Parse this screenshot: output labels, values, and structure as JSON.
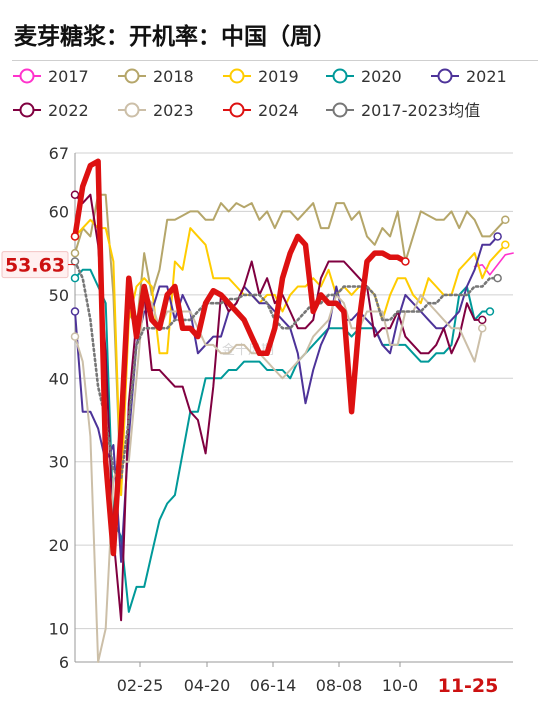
{
  "chart_data": {
    "type": "line",
    "title": "麦芽糖浆：开机率：中国（周）",
    "ylim": [
      6,
      67
    ],
    "yticks": [
      6,
      10,
      20,
      30,
      40,
      50,
      60,
      67
    ],
    "xticks": [
      "02-25",
      "04-20",
      "06-14",
      "08-08",
      "10-0"
    ],
    "highlight_xtick": "11-25",
    "current_value_label": "53.63",
    "watermark": "金十风期",
    "grid": true,
    "legend_position": "top",
    "series": [
      {
        "name": "2017",
        "color": "#ff33cc",
        "width": 1.6,
        "markers": false,
        "values": [
          null,
          null,
          null,
          null,
          null,
          null,
          null,
          null,
          null,
          null,
          null,
          null,
          null,
          null,
          null,
          null,
          null,
          null,
          null,
          null,
          null,
          null,
          null,
          null,
          null,
          null,
          null,
          null,
          null,
          null,
          null,
          null,
          null,
          null,
          null,
          null,
          null,
          null,
          null,
          null,
          null,
          null,
          null,
          null,
          null,
          null,
          null,
          null,
          null,
          null,
          null,
          null,
          53.4,
          53.6,
          52.4,
          53.6,
          54.8,
          55.0
        ]
      },
      {
        "name": "2018",
        "color": "#b5a66a",
        "width": 2,
        "markers": true,
        "values": [
          55,
          58,
          57,
          62,
          62,
          50,
          26,
          48,
          46,
          55,
          50,
          53,
          59,
          59,
          59.5,
          60,
          60,
          59,
          59,
          61,
          60,
          61,
          60.5,
          61,
          59,
          60,
          58,
          60,
          60,
          59,
          60,
          61,
          58,
          58,
          61,
          61,
          59,
          60,
          57,
          56,
          58,
          57,
          60,
          54,
          57,
          60,
          59.5,
          59,
          59,
          60,
          58,
          60,
          59,
          57,
          57,
          58,
          59
        ]
      },
      {
        "name": "2019",
        "color": "#ffcc00",
        "width": 2,
        "markers": true,
        "values": [
          57,
          58,
          59,
          58,
          58,
          54,
          26,
          47,
          51,
          52,
          51,
          43,
          43,
          54,
          53,
          58,
          57,
          56,
          52,
          52,
          52,
          51,
          50,
          50,
          49,
          50,
          50,
          48,
          50,
          51,
          51,
          52,
          51,
          53,
          50,
          51,
          50,
          51,
          51,
          50,
          47,
          50,
          52,
          52,
          50,
          49,
          52,
          51,
          50,
          50,
          53,
          54,
          55,
          52,
          54,
          55,
          56
        ]
      },
      {
        "name": "2020",
        "color": "#009999",
        "width": 2,
        "markers": true,
        "values": [
          52,
          53,
          53,
          51,
          49,
          23,
          21,
          12,
          15,
          15,
          19,
          23,
          25,
          26,
          31,
          36,
          36,
          40,
          40,
          40,
          41,
          41,
          42,
          42,
          42,
          41,
          41,
          41,
          40,
          42,
          43,
          44,
          45,
          46,
          46,
          46,
          45,
          46,
          46,
          46,
          44,
          44,
          44,
          44,
          43,
          42,
          42,
          43,
          43,
          44,
          50,
          51,
          47,
          48,
          48
        ]
      },
      {
        "name": "2021",
        "color": "#4d3399",
        "width": 2,
        "markers": true,
        "values": [
          48,
          36,
          36,
          34,
          30,
          32,
          18,
          33,
          44,
          48,
          48,
          51,
          51,
          47,
          50,
          48,
          43,
          44,
          45,
          45,
          48,
          49,
          51,
          50,
          49,
          49,
          48,
          47,
          46,
          43,
          37,
          41,
          44,
          46,
          51,
          47,
          47,
          48,
          47,
          46,
          44,
          43,
          47,
          50,
          49,
          48,
          47,
          46,
          46,
          47,
          48,
          51,
          53,
          56,
          56,
          57
        ]
      },
      {
        "name": "2022",
        "color": "#800040",
        "width": 2,
        "markers": true,
        "values": [
          62,
          61,
          62,
          56,
          43,
          21,
          11,
          37,
          47,
          50,
          41,
          41,
          40,
          39,
          39,
          36,
          35,
          31,
          39,
          50,
          48,
          49,
          51,
          54,
          50,
          52,
          49,
          50,
          48,
          46,
          46,
          47,
          52,
          54,
          54,
          54,
          53,
          52,
          51,
          45,
          46,
          46,
          48,
          45,
          44,
          43,
          43,
          44,
          46,
          43,
          45,
          49,
          47,
          47
        ]
      },
      {
        "name": "2023",
        "color": "#ccbfa8",
        "width": 2,
        "markers": true,
        "values": [
          45,
          42,
          33,
          6,
          10,
          28,
          30,
          30,
          40,
          50,
          49,
          46,
          48,
          48,
          48,
          48,
          46,
          44,
          44,
          43,
          43,
          44,
          44,
          43,
          43,
          42,
          41,
          40,
          41,
          42,
          43,
          45,
          46,
          47,
          50,
          49,
          46,
          46,
          48,
          48,
          48,
          44,
          44,
          48,
          48,
          50,
          49,
          48,
          47,
          46,
          46,
          44,
          42,
          46
        ]
      },
      {
        "name": "2024",
        "color": "#dd1111",
        "width": 5.5,
        "markers": true,
        "values": [
          57,
          63,
          65.5,
          66,
          30,
          19,
          34,
          52,
          45,
          51,
          47,
          46,
          50,
          51,
          46,
          46,
          45,
          49,
          50.5,
          50,
          49,
          48,
          47,
          45,
          43,
          43,
          46,
          52,
          55,
          57,
          56,
          48,
          50,
          49,
          49,
          48,
          36,
          47,
          54,
          55,
          55,
          54.5,
          54.5,
          54
        ]
      },
      {
        "name": "2017-2023均值",
        "color": "#777777",
        "width": 2.6,
        "markers": true,
        "dotted": true,
        "values": [
          54,
          52,
          47,
          39,
          35,
          29,
          28,
          35,
          44,
          46,
          46,
          46,
          46,
          47,
          47,
          47,
          48,
          49,
          49,
          49,
          49.5,
          49.5,
          50,
          50,
          50,
          49,
          47,
          46,
          46,
          47,
          48,
          49,
          49,
          50,
          50,
          51,
          51,
          51,
          51,
          50,
          47,
          47,
          48,
          48,
          48,
          48,
          49,
          49,
          50,
          50,
          50,
          50,
          51,
          51,
          52,
          52
        ]
      }
    ]
  }
}
